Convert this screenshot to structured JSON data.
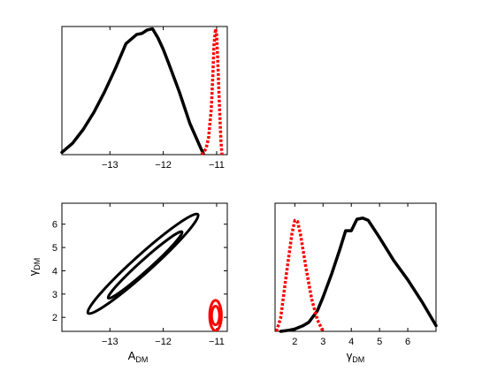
{
  "chart_data": [
    {
      "panel": "top-left",
      "type": "line",
      "xlim": [
        -13.9,
        -10.8
      ],
      "ylim": [
        0,
        1.12
      ],
      "xticks": [
        -13,
        -12,
        -11
      ],
      "xtick_labels": [
        "−13",
        "−12",
        "−11"
      ],
      "yticks": [],
      "xlabel": "",
      "ylabel": "",
      "series": [
        {
          "style": "solid",
          "color": "#000000",
          "x": [
            -13.9,
            -13.7,
            -13.5,
            -13.3,
            -13.1,
            -12.9,
            -12.7,
            -12.5,
            -12.4,
            -12.3,
            -12.2,
            -12.1,
            -12.0,
            -11.9,
            -11.7,
            -11.5,
            -11.3,
            -11.25
          ],
          "y": [
            0.02,
            0.1,
            0.22,
            0.37,
            0.55,
            0.75,
            0.97,
            1.05,
            1.06,
            1.09,
            1.1,
            1.02,
            0.92,
            0.8,
            0.55,
            0.27,
            0.06,
            0.01
          ]
        },
        {
          "style": "dotted",
          "color": "#ff0000",
          "x": [
            -11.28,
            -11.2,
            -11.15,
            -11.1,
            -11.07,
            -11.05,
            -11.02,
            -11.0,
            -10.98,
            -10.95,
            -10.92,
            -10.9
          ],
          "y": [
            0.0,
            0.05,
            0.15,
            0.4,
            0.7,
            0.95,
            1.1,
            1.05,
            0.85,
            0.45,
            0.12,
            0.0
          ]
        }
      ]
    },
    {
      "panel": "bottom-left",
      "type": "contour",
      "xlim": [
        -13.9,
        -10.8
      ],
      "ylim": [
        1.4,
        6.9
      ],
      "xticks": [
        -13,
        -12,
        -11
      ],
      "xtick_labels": [
        "−13",
        "−12",
        "−11"
      ],
      "yticks": [
        2,
        3,
        4,
        5,
        6
      ],
      "ytick_labels": [
        "2",
        "3",
        "4",
        "5",
        "6"
      ],
      "xlabel": "A",
      "xlabel_sub": "DM",
      "ylabel": "γ",
      "ylabel_sub": "DM",
      "contours": [
        {
          "color": "#000000",
          "cx": -12.38,
          "cy": 4.3,
          "rx": 1.82,
          "ry": 0.24,
          "angle": -42
        },
        {
          "color": "#000000",
          "cx": -12.34,
          "cy": 4.25,
          "rx": 1.22,
          "ry": 0.14,
          "angle": -42
        },
        {
          "color": "#ff0000",
          "cx": -11.02,
          "cy": 2.08,
          "rx": 0.11,
          "ry": 0.65,
          "angle": 0
        },
        {
          "color": "#ff0000",
          "cx": -11.02,
          "cy": 2.08,
          "rx": 0.075,
          "ry": 0.4,
          "angle": 0
        }
      ]
    },
    {
      "panel": "bottom-right",
      "type": "line",
      "xlim": [
        1.3,
        7.0
      ],
      "ylim": [
        0,
        1.12
      ],
      "xticks": [
        2,
        3,
        4,
        5,
        6
      ],
      "xtick_labels": [
        "2",
        "3",
        "4",
        "5",
        "6"
      ],
      "yticks": [],
      "xlabel": "γ",
      "xlabel_sub": "DM",
      "ylabel": "",
      "series": [
        {
          "style": "solid",
          "color": "#000000",
          "x": [
            1.5,
            1.8,
            2.0,
            2.3,
            2.5,
            2.8,
            3.0,
            3.3,
            3.6,
            3.8,
            4.0,
            4.2,
            4.4,
            4.6,
            5.0,
            5.5,
            6.0,
            6.5,
            7.0
          ],
          "y": [
            0.0,
            0.01,
            0.02,
            0.05,
            0.08,
            0.18,
            0.3,
            0.5,
            0.72,
            0.88,
            0.88,
            0.98,
            0.99,
            0.97,
            0.82,
            0.62,
            0.45,
            0.26,
            0.05
          ]
        },
        {
          "style": "dotted",
          "color": "#ff0000",
          "x": [
            1.35,
            1.5,
            1.7,
            1.9,
            2.0,
            2.1,
            2.2,
            2.4,
            2.6,
            2.8,
            3.0
          ],
          "y": [
            0.0,
            0.12,
            0.5,
            0.86,
            0.97,
            0.96,
            0.85,
            0.55,
            0.28,
            0.1,
            0.0
          ]
        }
      ]
    }
  ]
}
